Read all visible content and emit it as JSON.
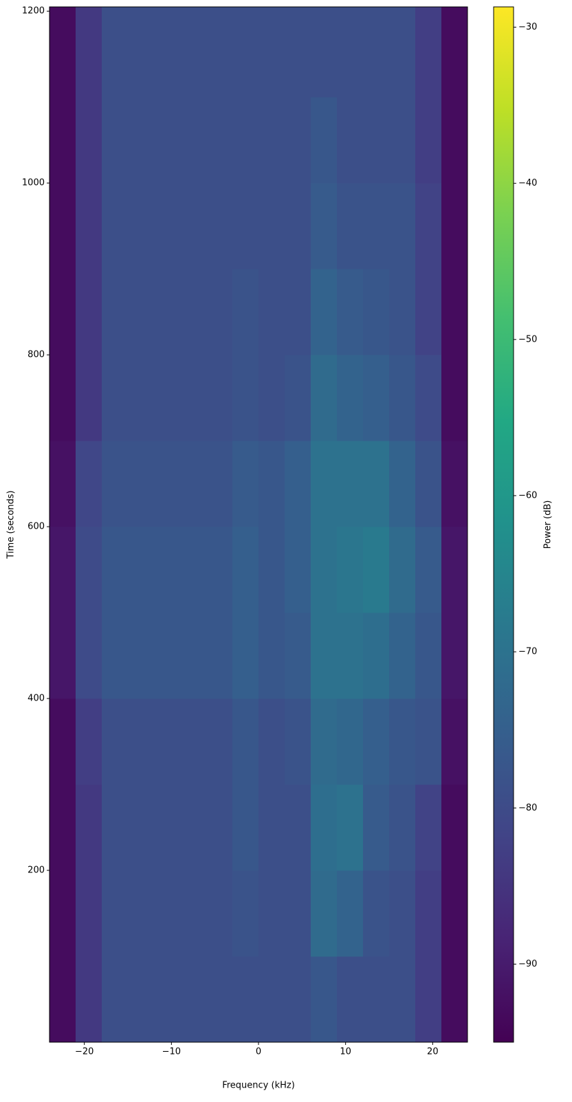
{
  "chart_data": {
    "type": "heatmap",
    "colormap": "viridis",
    "x_label": "Frequency (kHz)",
    "y_label": "Time (seconds)",
    "colorbar_label": "Power (dB)",
    "xlim": [
      -24,
      24
    ],
    "ylim": [
      0,
      1205
    ],
    "clim": [
      -95,
      -28.7
    ],
    "xticks": [
      {
        "value": -20,
        "label": "−20"
      },
      {
        "value": -10,
        "label": "−10"
      },
      0,
      10,
      20
    ],
    "yticks": [
      200,
      400,
      600,
      800,
      1000,
      1200
    ],
    "cticks": [
      {
        "value": -30,
        "label": "−30"
      },
      {
        "value": -40,
        "label": "−40"
      },
      {
        "value": -50,
        "label": "−50"
      },
      {
        "value": -60,
        "label": "−60"
      },
      {
        "value": -70,
        "label": "−70"
      },
      {
        "value": -80,
        "label": "−80"
      },
      {
        "value": -90,
        "label": "−90"
      }
    ],
    "x_bins": [
      -24,
      -21,
      -18,
      -15,
      -12,
      -9,
      -6,
      -3,
      0,
      3,
      6,
      9,
      12,
      15,
      18,
      21,
      24
    ],
    "y_bins": [
      0,
      100,
      200,
      300,
      400,
      500,
      600,
      700,
      800,
      900,
      1000,
      1100,
      1205
    ],
    "z": [
      [
        -93,
        -84,
        -79,
        -79,
        -79,
        -79,
        -79,
        -79,
        -79,
        -79,
        -77,
        -79,
        -79,
        -79,
        -83,
        -93
      ],
      [
        -93,
        -84,
        -79,
        -79,
        -79,
        -79,
        -79,
        -78,
        -79,
        -79,
        -72,
        -74,
        -78,
        -79,
        -83,
        -93
      ],
      [
        -93,
        -84,
        -79,
        -79,
        -79,
        -79,
        -79,
        -77,
        -79,
        -79,
        -71,
        -70,
        -76,
        -78,
        -82,
        -93
      ],
      [
        -93,
        -83,
        -79,
        -79,
        -79,
        -79,
        -79,
        -77,
        -79,
        -78,
        -72,
        -73,
        -75,
        -77,
        -78,
        -92
      ],
      [
        -91,
        -80,
        -77,
        -77,
        -77,
        -77,
        -77,
        -75,
        -77,
        -76,
        -70,
        -70,
        -71,
        -74,
        -77,
        -91
      ],
      [
        -91,
        -80,
        -77,
        -77,
        -77,
        -77,
        -77,
        -75,
        -77,
        -75,
        -70,
        -69,
        -68,
        -72,
        -76,
        -91
      ],
      [
        -92,
        -81,
        -78,
        -78,
        -78,
        -78,
        -78,
        -76,
        -77,
        -75,
        -70,
        -70,
        -70,
        -74,
        -78,
        -92
      ],
      [
        -93,
        -84,
        -79,
        -79,
        -79,
        -79,
        -79,
        -78,
        -79,
        -78,
        -72,
        -74,
        -75,
        -77,
        -80,
        -93
      ],
      [
        -93,
        -84,
        -79,
        -79,
        -79,
        -79,
        -79,
        -78,
        -79,
        -79,
        -74,
        -76,
        -77,
        -78,
        -82,
        -93
      ],
      [
        -93,
        -84,
        -79,
        -79,
        -79,
        -79,
        -79,
        -79,
        -79,
        -79,
        -76,
        -78,
        -78,
        -78,
        -82,
        -93
      ],
      [
        -93,
        -84,
        -79,
        -79,
        -79,
        -79,
        -79,
        -79,
        -79,
        -79,
        -77,
        -79,
        -79,
        -79,
        -83,
        -93
      ],
      [
        -93,
        -84,
        -79,
        -79,
        -79,
        -79,
        -79,
        -79,
        -79,
        -79,
        -79,
        -79,
        -79,
        -79,
        -83,
        -93
      ]
    ]
  }
}
